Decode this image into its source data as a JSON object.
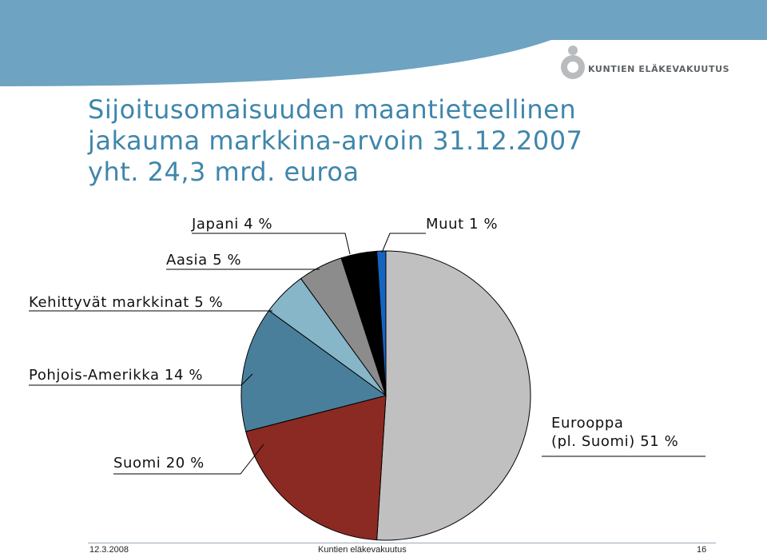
{
  "header": {
    "logo_text": "KUNTIEN ELÄKEVAKUUTUS",
    "brand_color": "#6ea3c1"
  },
  "title": {
    "line1": "Sijoitusomaisuuden maantieteellinen",
    "line2": "jakauma markkina-arvoin 31.12.2007",
    "line3": "yht. 24,3 mrd. euroa"
  },
  "chart_data": {
    "type": "pie",
    "slices": [
      {
        "label": "Eurooppa (pl. Suomi) 51 %",
        "label_line1": "Eurooppa",
        "label_line2": "(pl. Suomi) 51 %",
        "value": 51,
        "color": "#c0c0c0"
      },
      {
        "label": "Suomi 20 %",
        "value": 20,
        "color": "#8b2a22"
      },
      {
        "label": "Pohjois-Amerikka 14 %",
        "value": 14,
        "color": "#4a7f9c"
      },
      {
        "label": "Kehittyvät markkinat 5 %",
        "value": 5,
        "color": "#86b6c8"
      },
      {
        "label": "Aasia 5 %",
        "value": 5,
        "color": "#8c8c8c"
      },
      {
        "label": "Japani 4 %",
        "value": 4,
        "color": "#000000"
      },
      {
        "label": "Muut 1 %",
        "value": 1,
        "color": "#1565c0"
      }
    ]
  },
  "footer": {
    "date": "12.3.2008",
    "organization": "Kuntien eläkevakuutus",
    "page": "16"
  }
}
